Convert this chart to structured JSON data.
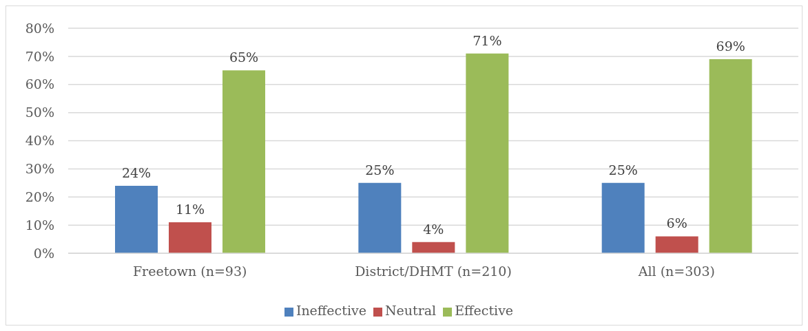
{
  "chart_data": {
    "type": "bar",
    "categories": [
      "Freetown (n=93)",
      "District/DHMT (n=210)",
      "All (n=303)"
    ],
    "series": [
      {
        "name": "Ineffective",
        "color": "#4f81bd",
        "values": [
          24,
          25,
          25
        ],
        "value_labels": [
          "24%",
          "25%",
          "25%"
        ]
      },
      {
        "name": "Neutral",
        "color": "#c0504d",
        "values": [
          11,
          4,
          6
        ],
        "value_labels": [
          "11%",
          "4%",
          "6%"
        ]
      },
      {
        "name": "Effective",
        "color": "#9bbb59",
        "values": [
          65,
          71,
          69
        ],
        "value_labels": [
          "65%",
          "71%",
          "69%"
        ]
      }
    ],
    "ylim": [
      0,
      80
    ],
    "yticks": [
      {
        "value": 0,
        "label": "0%"
      },
      {
        "value": 10,
        "label": "10%"
      },
      {
        "value": 20,
        "label": "20%"
      },
      {
        "value": 30,
        "label": "30%"
      },
      {
        "value": 40,
        "label": "40%"
      },
      {
        "value": 50,
        "label": "50%"
      },
      {
        "value": 60,
        "label": "60%"
      },
      {
        "value": 70,
        "label": "70%"
      },
      {
        "value": 80,
        "label": "80%"
      }
    ],
    "grid": "y",
    "legend": "bottom"
  }
}
